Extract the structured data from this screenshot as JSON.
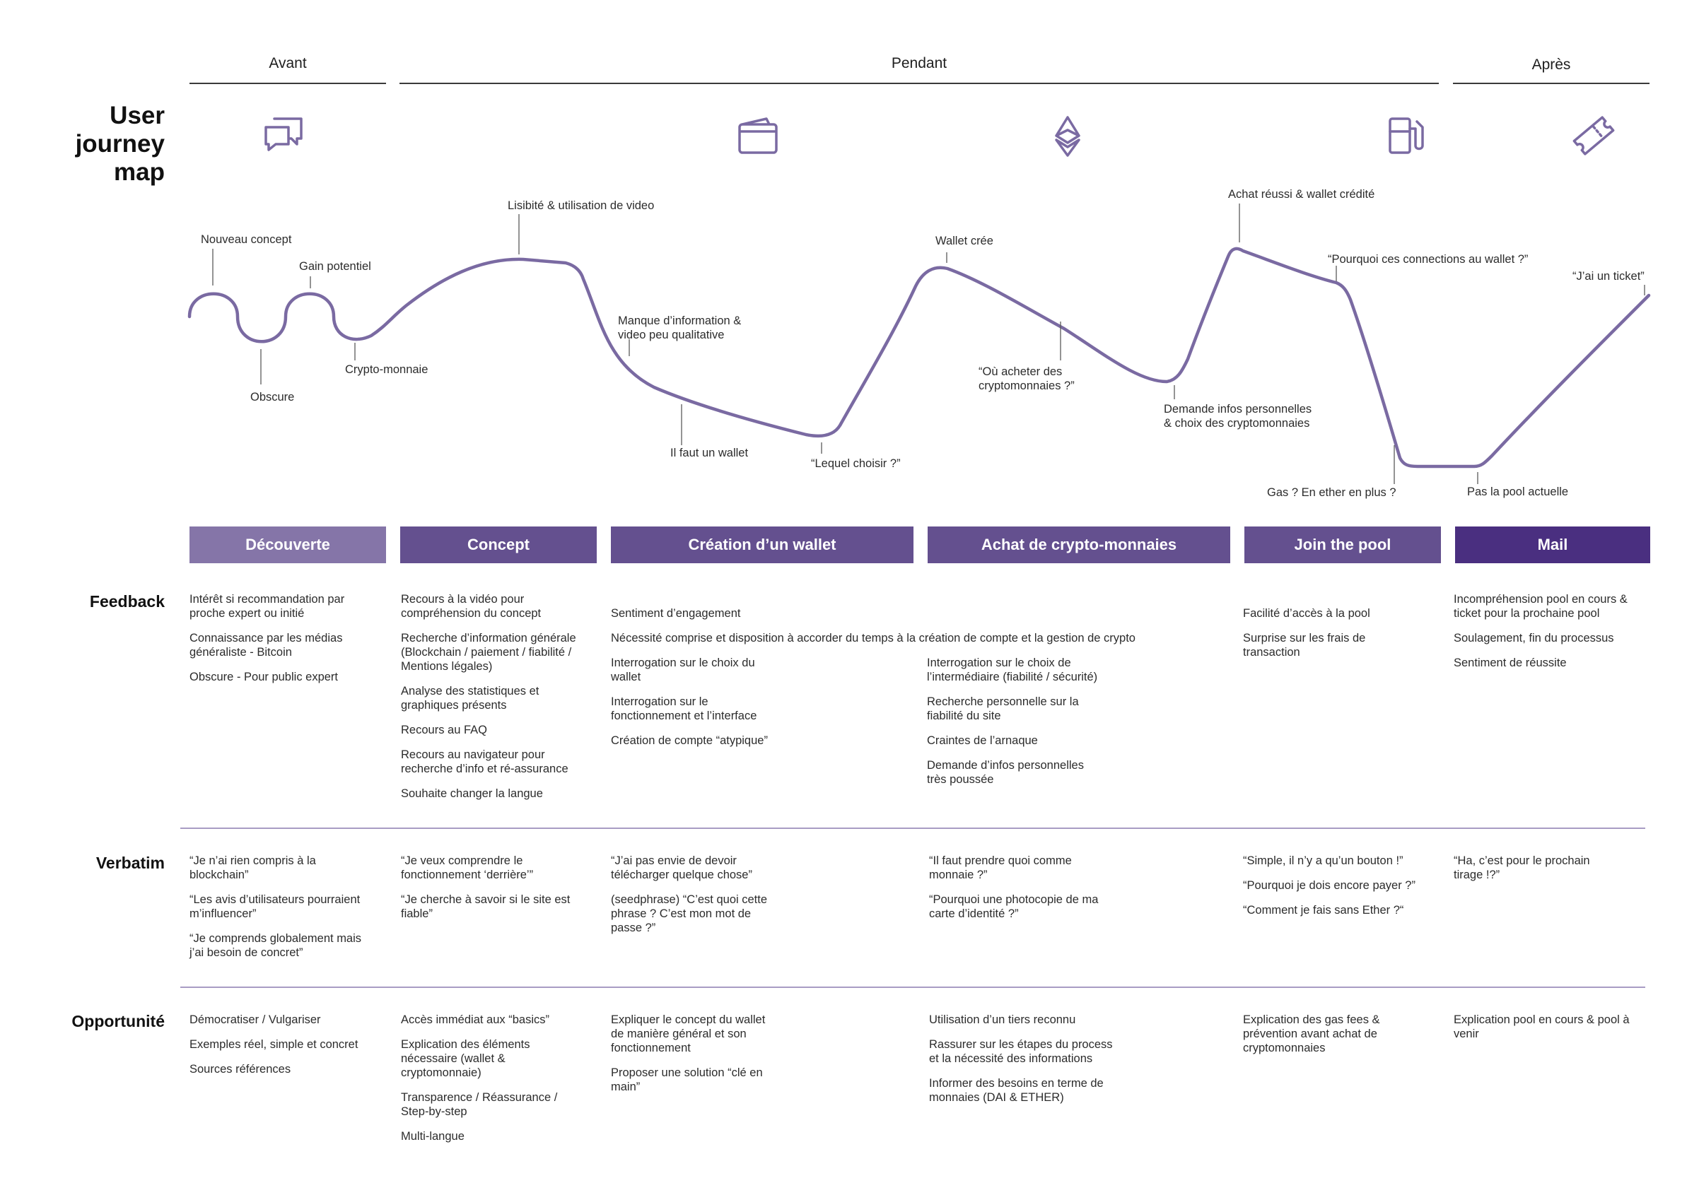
{
  "colors": {
    "curve": "#7a6aa2",
    "stage_1": "#8575a8",
    "stage_2": "#64508f",
    "stage_3": "#64508f",
    "stage_4": "#64508f",
    "stage_5": "#64508f",
    "stage_6": "#4a2f80",
    "separator": "#a89cc4"
  },
  "phases": {
    "avant": "Avant",
    "pendant": "Pendant",
    "apres": "Après"
  },
  "title": "User\njourney\nmap",
  "icons": [
    "chat-icon",
    "wallet-icon",
    "ethereum-icon",
    "fuel-pump-icon",
    "ticket-icon"
  ],
  "curve_labels": {
    "nouveau_concept": "Nouveau concept",
    "gain_potentiel": "Gain potentiel",
    "obscure": "Obscure",
    "crypto_monnaie": "Crypto-monnaie",
    "lisibilite": "Lisibité & utilisation de video",
    "manque_info": "Manque d’information &\nvideo peu qualitative",
    "il_faut_wallet": "Il faut un wallet",
    "lequel_choisir": "“Lequel choisir ?”",
    "wallet_cree": "Wallet crée",
    "ou_acheter": "“Où acheter des\ncryptomonnaies ?”",
    "demande_infos": "Demande infos personnelles\n& choix des cryptomonnaies",
    "achat_reussi": "Achat réussi & wallet crédité",
    "pourquoi_connections": "“Pourquoi ces connections au wallet ?”",
    "gas": "Gas ? En ether en plus ?",
    "pas_la_pool": "Pas la pool actuelle",
    "jai_un_ticket": "“J’ai un ticket”"
  },
  "stages": [
    "Découverte",
    "Concept",
    "Création d’un wallet",
    "Achat de crypto-monnaies",
    "Join the pool",
    "Mail"
  ],
  "rows": {
    "feedback": "Feedback",
    "verbatim": "Verbatim",
    "opportunite": "Opportunité"
  },
  "feedback": {
    "decouverte": [
      "Intérêt si recommandation par\nproche expert ou initié",
      "Connaissance par les médias\ngénéraliste - Bitcoin",
      "Obscure - Pour public expert"
    ],
    "concept": [
      "Recours à la vidéo pour\ncompréhension du concept",
      "Recherche d’information générale\n(Blockchain / paiement / fiabilité /\nMentions légales)",
      "Analyse des statistiques et\ngraphiques présents",
      "Recours au FAQ",
      "Recours au navigateur pour\nrecherche d’info et ré-assurance",
      "Souhaite changer la langue"
    ],
    "shared_1": "Sentiment d’engagement",
    "shared_2": "Nécessité comprise et disposition à accorder du temps à la création de compte et la gestion de crypto",
    "wallet": [
      "Interrogation sur le choix du\nwallet",
      "Interrogation sur le\nfonctionnement et l’interface",
      "Création de compte “atypique”"
    ],
    "achat": [
      "Interrogation sur le choix de\nl’intermédiaire (fiabilité / sécurité)",
      "Recherche personnelle sur la\nfiabilité du site",
      "Craintes de l’arnaque",
      "Demande d’infos personnelles\ntrès poussée"
    ],
    "pool": [
      "Facilité d’accès à la pool",
      "Surprise sur les frais de\ntransaction"
    ],
    "mail": [
      "Incompréhension pool en cours &\nticket pour la prochaine pool",
      "Soulagement, fin du processus",
      "Sentiment de réussite"
    ]
  },
  "verbatim": {
    "decouverte": [
      "“Je n’ai rien compris à la\nblockchain”",
      "“Les avis d’utilisateurs pourraient\nm’influencer”",
      "“Je comprends globalement mais\nj’ai besoin de concret”"
    ],
    "concept": [
      "“Je veux comprendre le\nfonctionnement ‘derrière’”",
      "“Je cherche à savoir si le site est\nfiable”"
    ],
    "wallet": [
      "“J’ai pas envie de devoir\ntélécharger quelque chose”",
      "(seedphrase) “C’est quoi cette\nphrase ? C’est mon mot de\npasse ?”"
    ],
    "achat": [
      "“Il faut prendre quoi comme\nmonnaie ?”",
      "“Pourquoi une photocopie de ma\ncarte d’identité ?”"
    ],
    "pool": [
      "“Simple, il n’y a qu’un bouton !”",
      "“Pourquoi je dois encore payer ?”",
      "“Comment je fais sans Ether ?“"
    ],
    "mail": [
      "“Ha, c’est pour le prochain\ntirage !?”"
    ]
  },
  "opportunite": {
    "decouverte": [
      "Démocratiser / Vulgariser",
      "Exemples réel, simple et concret",
      "Sources références"
    ],
    "concept": [
      "Accès immédiat aux “basics”",
      "Explication des éléments\nnécessaire (wallet &\ncryptomonnaie)",
      "Transparence / Réassurance /\nStep-by-step",
      "Multi-langue"
    ],
    "wallet": [
      "Expliquer le concept du wallet\nde manière général et son\nfonctionnement",
      "Proposer une solution “clé en\nmain”"
    ],
    "achat": [
      "Utilisation d’un tiers reconnu",
      "Rassurer sur les étapes du process\net la nécessité des informations",
      "Informer des besoins en terme de\nmonnaies (DAI & ETHER)"
    ],
    "pool": [
      "Explication des gas fees &\nprévention avant achat de\ncryptomonnaies"
    ],
    "mail": [
      "Explication pool en cours & pool à\nvenir"
    ]
  }
}
